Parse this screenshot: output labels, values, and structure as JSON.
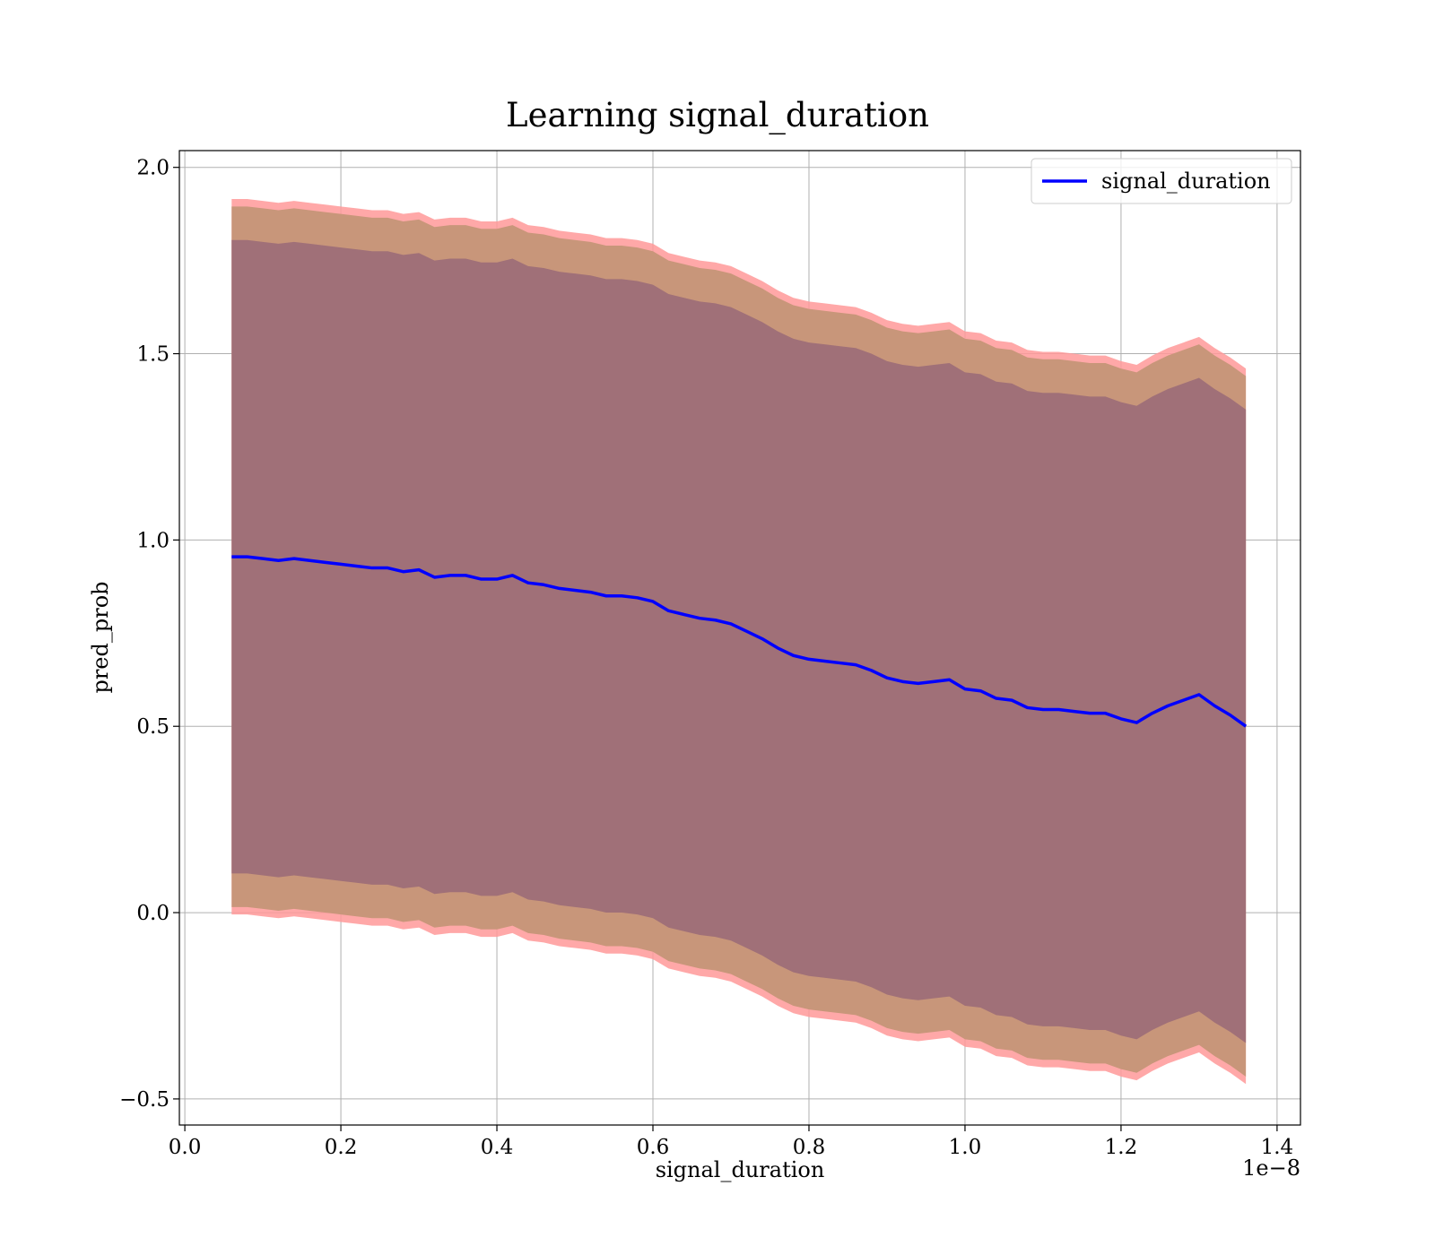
{
  "chart_data": {
    "type": "area",
    "title": "Learning signal_duration",
    "xlabel": "signal_duration",
    "ylabel": "pred_prob",
    "x_offset_label": "1e−8",
    "xlim": [
      -0.007,
      1.43
    ],
    "ylim": [
      -0.57,
      2.045
    ],
    "x_ticks": [
      0.0,
      0.2,
      0.4,
      0.6,
      0.8,
      1.0,
      1.2,
      1.4
    ],
    "x_tick_labels": [
      "0.0",
      "0.2",
      "0.4",
      "0.6",
      "0.8",
      "1.0",
      "1.2",
      "1.4"
    ],
    "y_ticks": [
      -0.5,
      0.0,
      0.5,
      1.0,
      1.5,
      2.0
    ],
    "y_tick_labels": [
      "−0.5",
      "0.0",
      "0.5",
      "1.0",
      "1.5",
      "2.0"
    ],
    "grid": true,
    "legend": {
      "position": "top-right",
      "entries": [
        "signal_duration"
      ]
    },
    "colors": {
      "line": "#0000ff",
      "outer_band": "#ff9999",
      "middle_band": "#c8967a",
      "inner_band": "#a07078"
    },
    "series": [
      {
        "name": "signal_duration",
        "x": [
          0.06,
          0.08,
          0.1,
          0.12,
          0.14,
          0.16,
          0.18,
          0.2,
          0.22,
          0.24,
          0.26,
          0.28,
          0.3,
          0.32,
          0.34,
          0.36,
          0.38,
          0.4,
          0.42,
          0.44,
          0.46,
          0.48,
          0.5,
          0.52,
          0.54,
          0.56,
          0.58,
          0.6,
          0.62,
          0.64,
          0.66,
          0.68,
          0.7,
          0.72,
          0.74,
          0.76,
          0.78,
          0.8,
          0.82,
          0.84,
          0.86,
          0.88,
          0.9,
          0.92,
          0.94,
          0.96,
          0.98,
          1.0,
          1.02,
          1.04,
          1.06,
          1.08,
          1.1,
          1.12,
          1.14,
          1.16,
          1.18,
          1.2,
          1.22,
          1.24,
          1.26,
          1.28,
          1.3,
          1.32,
          1.34,
          1.36
        ],
        "y": [
          0.955,
          0.955,
          0.95,
          0.945,
          0.95,
          0.945,
          0.94,
          0.935,
          0.93,
          0.925,
          0.925,
          0.915,
          0.92,
          0.9,
          0.905,
          0.905,
          0.895,
          0.895,
          0.905,
          0.885,
          0.88,
          0.87,
          0.865,
          0.86,
          0.85,
          0.85,
          0.845,
          0.835,
          0.81,
          0.8,
          0.79,
          0.785,
          0.775,
          0.755,
          0.735,
          0.71,
          0.69,
          0.68,
          0.675,
          0.67,
          0.665,
          0.65,
          0.63,
          0.62,
          0.615,
          0.62,
          0.625,
          0.6,
          0.595,
          0.575,
          0.57,
          0.55,
          0.545,
          0.545,
          0.54,
          0.535,
          0.535,
          0.52,
          0.51,
          0.535,
          0.555,
          0.57,
          0.585,
          0.555,
          0.53,
          0.5
        ],
        "inner_half_width": 0.85,
        "middle_half_width": 0.94,
        "outer_half_width": 0.96
      }
    ]
  }
}
